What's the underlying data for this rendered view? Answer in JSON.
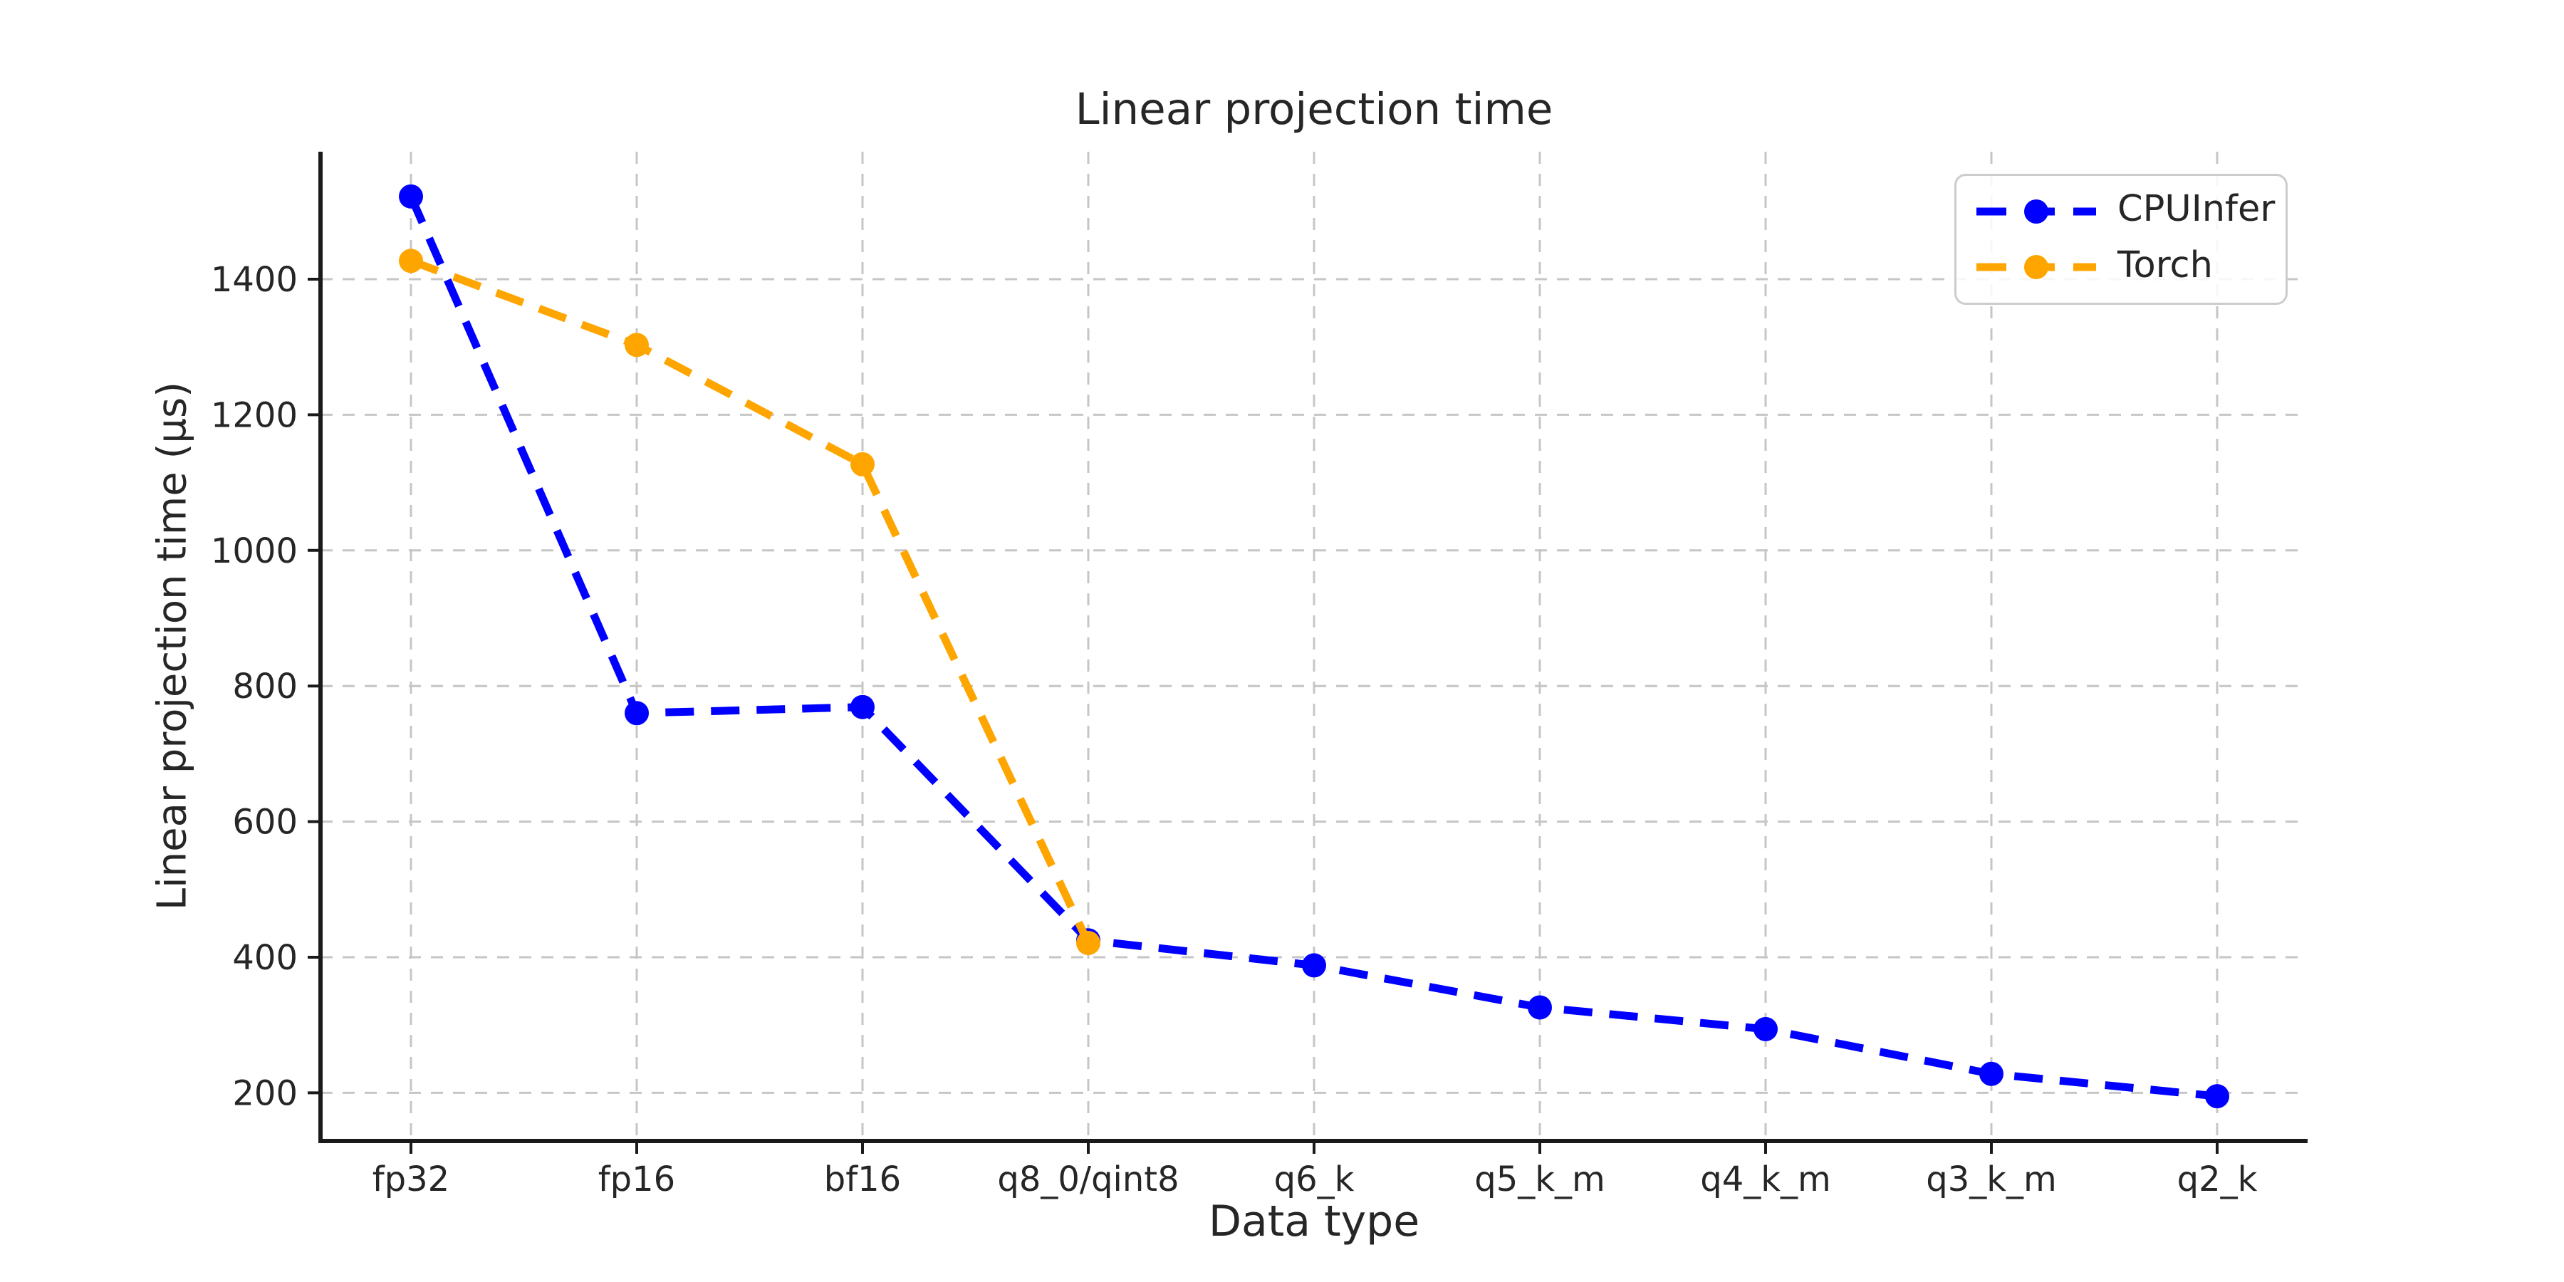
{
  "chart_data": {
    "type": "line",
    "title": "Linear projection time",
    "xlabel": "Data type",
    "ylabel": "Linear projection time (µs)",
    "categories": [
      "fp32",
      "fp16",
      "bf16",
      "q8_0/qint8",
      "q6_k",
      "q5_k_m",
      "q4_k_m",
      "q3_k_m",
      "q2_k"
    ],
    "series": [
      {
        "name": "CPUInfer",
        "color": "#0000ff",
        "values": [
          1522,
          760,
          769,
          425,
          388,
          326,
          294,
          228,
          195
        ]
      },
      {
        "name": "Torch",
        "color": "#ffa500",
        "values": [
          1427,
          1303,
          1127,
          421,
          null,
          null,
          null,
          null,
          null
        ]
      }
    ],
    "yticks": [
      200,
      400,
      600,
      800,
      1000,
      1200,
      1400
    ],
    "ylim": [
      129,
      1588
    ],
    "grid": true,
    "grid_style": "dashed",
    "line_style": "dashed",
    "marker": "circle",
    "legend_position": "upper right",
    "colors": {
      "text": "#262626",
      "spine": "#1a1a1a",
      "gridline": "#c6c6c6",
      "background": "#ffffff",
      "legend_border": "#cccccc"
    }
  }
}
